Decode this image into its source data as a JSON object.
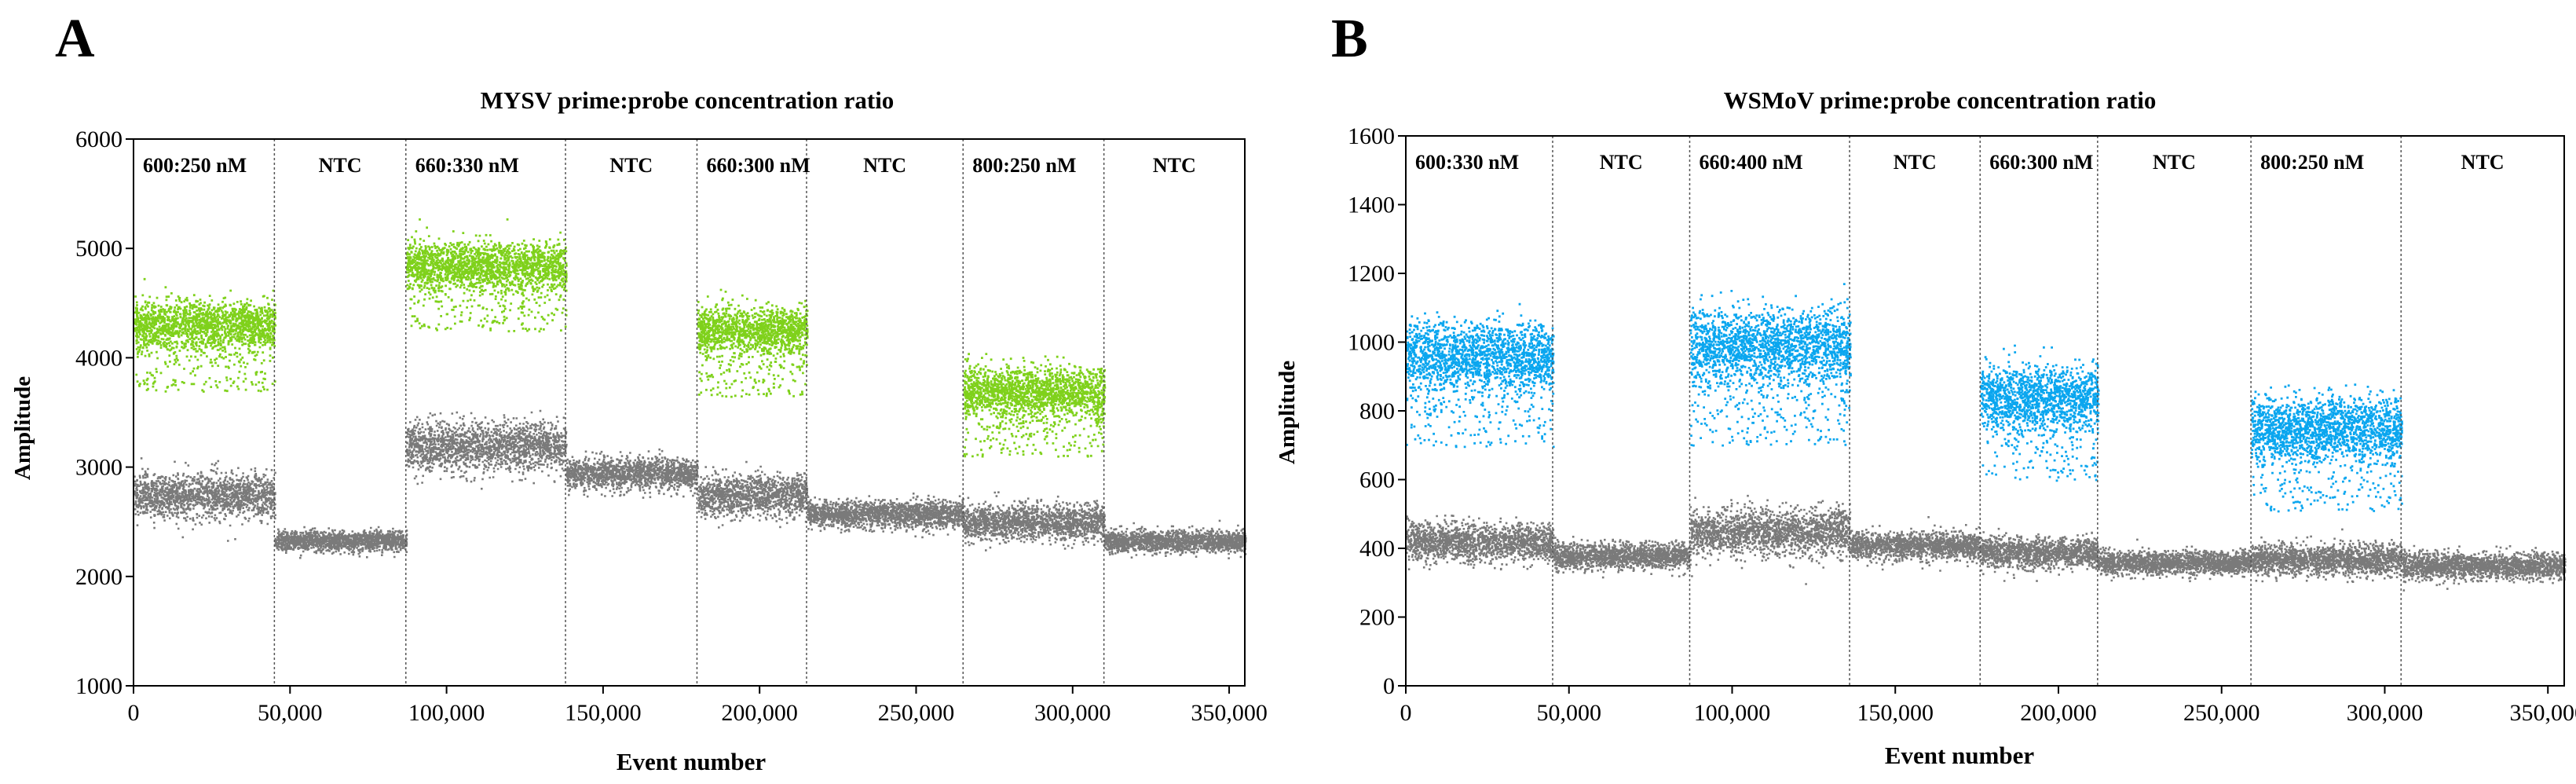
{
  "figure": {
    "panels": [
      "A",
      "B"
    ]
  },
  "colors": {
    "positive_A": "#7fd11b",
    "positive_B": "#0aa6ef",
    "negative": "#7a7a7a",
    "divider": "#555555",
    "axis": "#000000"
  },
  "chart_data": [
    {
      "type": "scatter",
      "panel_letter": "A",
      "title": "MYSV prime:probe concentration ratio",
      "xlabel": "Event number",
      "ylabel": "Amplitude",
      "xlim": [
        0,
        355000
      ],
      "ylim": [
        1000,
        6000
      ],
      "xticks": [
        0,
        50000,
        100000,
        150000,
        200000,
        250000,
        300000,
        350000
      ],
      "xtick_labels": [
        "0",
        "50,000",
        "100,000",
        "150,000",
        "200,000",
        "250,000",
        "300,000",
        "350,000"
      ],
      "yticks": [
        1000,
        2000,
        3000,
        4000,
        5000,
        6000
      ],
      "ytick_labels": [
        "1000",
        "2000",
        "3000",
        "4000",
        "5000",
        "6000"
      ],
      "wells": [
        {
          "label": "600:250 nM",
          "x_start": 0,
          "x_end": 45000,
          "positive_center": 4300,
          "positive_spread": 250,
          "negative_center": 2750,
          "negative_spread": 180,
          "positive_fraction": 0.5
        },
        {
          "label": "NTC",
          "x_start": 45000,
          "x_end": 87000,
          "positive_center": null,
          "positive_spread": 0,
          "negative_center": 2330,
          "negative_spread": 80,
          "positive_fraction": 0
        },
        {
          "label": "660:330 nM",
          "x_start": 87000,
          "x_end": 138000,
          "positive_center": 4850,
          "positive_spread": 250,
          "negative_center": 3200,
          "negative_spread": 200,
          "positive_fraction": 0.5
        },
        {
          "label": "NTC",
          "x_start": 138000,
          "x_end": 180000,
          "positive_center": null,
          "positive_spread": 0,
          "negative_center": 2950,
          "negative_spread": 130,
          "positive_fraction": 0
        },
        {
          "label": "660:300 nM",
          "x_start": 180000,
          "x_end": 215000,
          "positive_center": 4250,
          "positive_spread": 250,
          "negative_center": 2750,
          "negative_spread": 170,
          "positive_fraction": 0.5
        },
        {
          "label": "NTC",
          "x_start": 215000,
          "x_end": 265000,
          "positive_center": null,
          "positive_spread": 0,
          "negative_center": 2580,
          "negative_spread": 110,
          "positive_fraction": 0
        },
        {
          "label": "800:250 nM",
          "x_start": 265000,
          "x_end": 310000,
          "positive_center": 3700,
          "positive_spread": 250,
          "negative_center": 2500,
          "negative_spread": 150,
          "positive_fraction": 0.5
        },
        {
          "label": "NTC",
          "x_start": 310000,
          "x_end": 355000,
          "positive_center": null,
          "positive_spread": 0,
          "negative_center": 2330,
          "negative_spread": 90,
          "positive_fraction": 0
        }
      ]
    },
    {
      "type": "scatter",
      "panel_letter": "B",
      "title": "WSMoV prime:probe concentration ratio",
      "xlabel": "Event number",
      "ylabel": "Amplitude",
      "xlim": [
        0,
        355000
      ],
      "ylim": [
        0,
        1600
      ],
      "xticks": [
        0,
        50000,
        100000,
        150000,
        200000,
        250000,
        300000,
        350000
      ],
      "xtick_labels": [
        "0",
        "50,000",
        "100,000",
        "150,000",
        "200,000",
        "250,000",
        "300,000",
        "350,000"
      ],
      "yticks": [
        0,
        200,
        400,
        600,
        800,
        1000,
        1200,
        1400,
        1600
      ],
      "ytick_labels": [
        "0",
        "200",
        "400",
        "600",
        "800",
        "1000",
        "1200",
        "1400",
        "1600"
      ],
      "wells": [
        {
          "label": "600:330 nM",
          "x_start": 0,
          "x_end": 45000,
          "positive_center": 960,
          "positive_spread": 110,
          "negative_center": 420,
          "negative_spread": 50,
          "positive_fraction": 0.5
        },
        {
          "label": "NTC",
          "x_start": 45000,
          "x_end": 87000,
          "positive_center": null,
          "positive_spread": 0,
          "negative_center": 380,
          "negative_spread": 35,
          "positive_fraction": 0
        },
        {
          "label": "660:400 nM",
          "x_start": 87000,
          "x_end": 136000,
          "positive_center": 990,
          "positive_spread": 120,
          "negative_center": 450,
          "negative_spread": 60,
          "positive_fraction": 0.5
        },
        {
          "label": "NTC",
          "x_start": 136000,
          "x_end": 176000,
          "positive_center": null,
          "positive_spread": 0,
          "negative_center": 410,
          "negative_spread": 35,
          "positive_fraction": 0
        },
        {
          "label": "660:300 nM",
          "x_start": 176000,
          "x_end": 212000,
          "positive_center": 840,
          "positive_spread": 100,
          "negative_center": 390,
          "negative_spread": 40,
          "positive_fraction": 0.5
        },
        {
          "label": "NTC",
          "x_start": 212000,
          "x_end": 259000,
          "positive_center": null,
          "positive_spread": 0,
          "negative_center": 360,
          "negative_spread": 30,
          "positive_fraction": 0
        },
        {
          "label": "800:250 nM",
          "x_start": 259000,
          "x_end": 305000,
          "positive_center": 750,
          "positive_spread": 100,
          "negative_center": 370,
          "negative_spread": 40,
          "positive_fraction": 0.5
        },
        {
          "label": "NTC",
          "x_start": 305000,
          "x_end": 355000,
          "positive_center": null,
          "positive_spread": 0,
          "negative_center": 350,
          "negative_spread": 35,
          "positive_fraction": 0
        }
      ]
    }
  ]
}
